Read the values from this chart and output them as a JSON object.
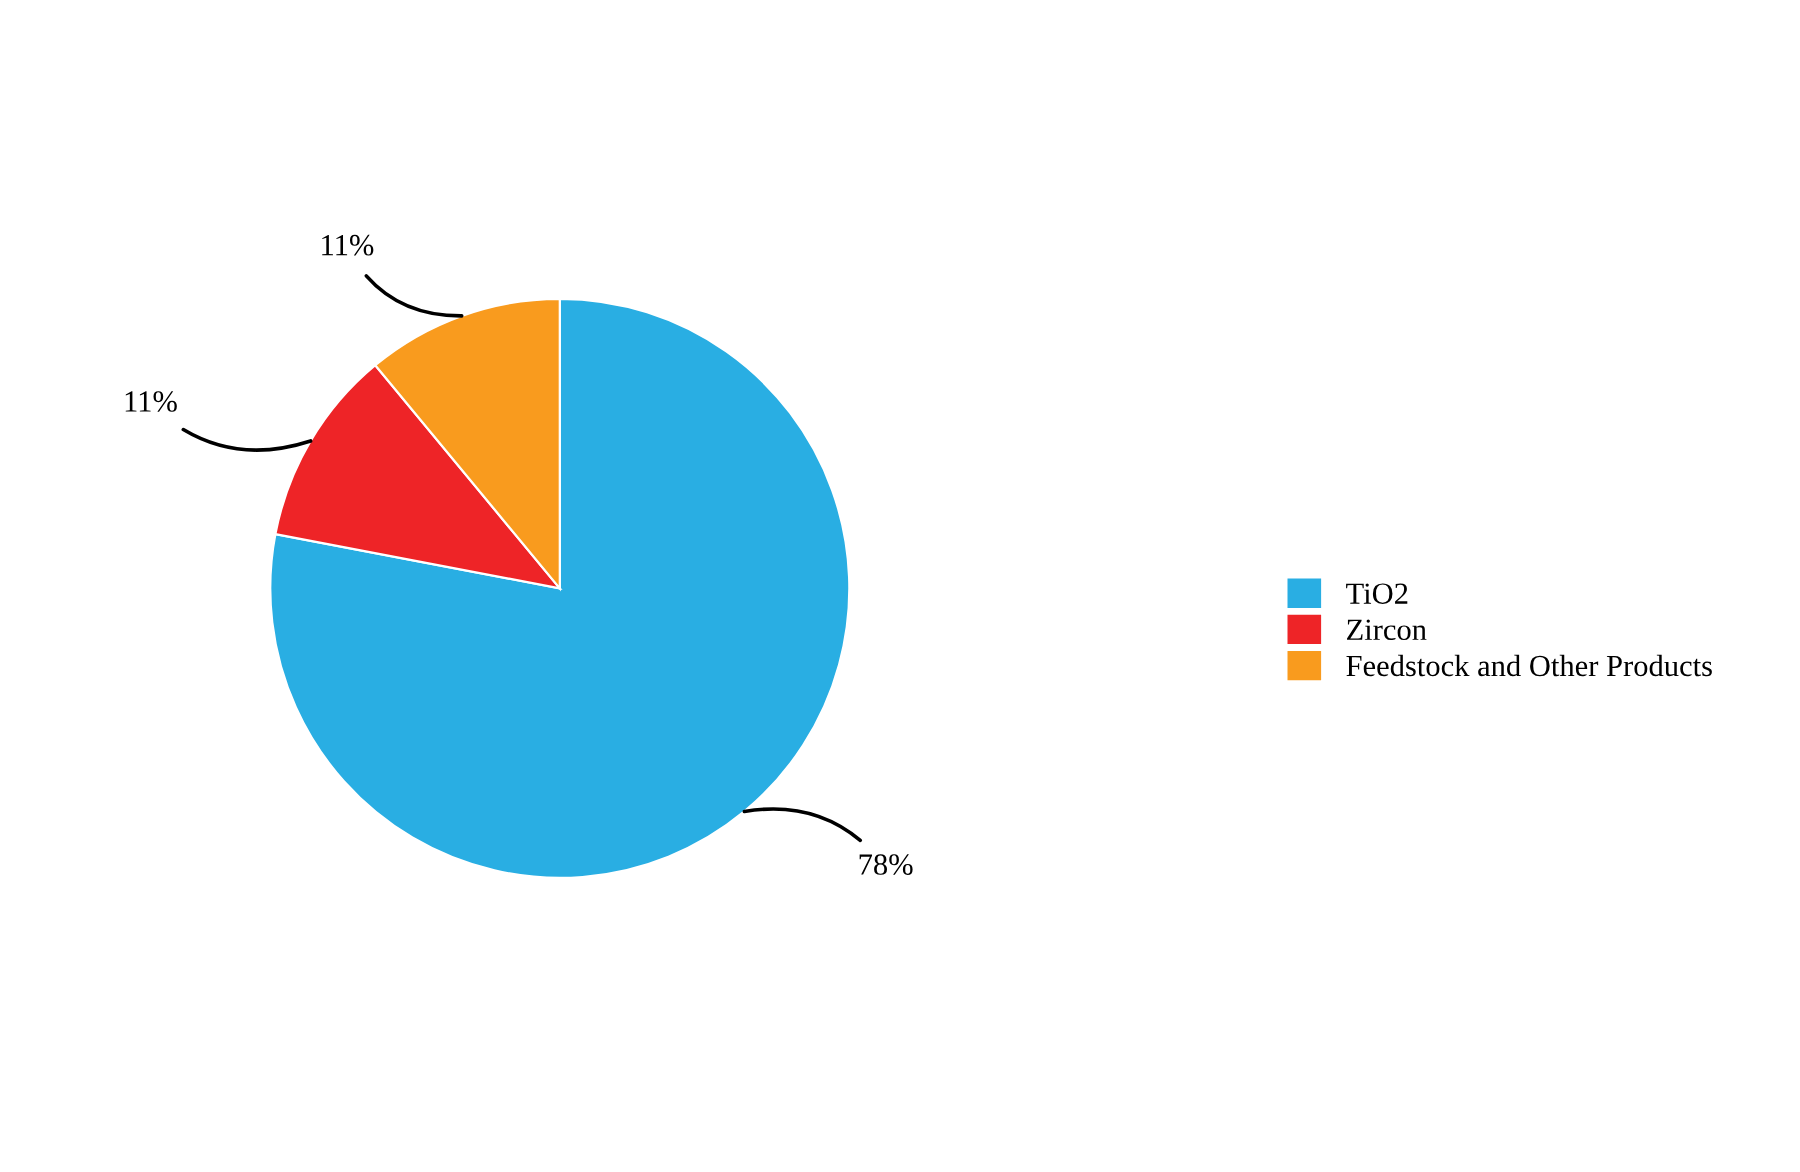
{
  "chart_data": {
    "type": "pie",
    "categories": [
      "TiO2",
      "Zircon",
      "Feedstock and Other Products"
    ],
    "values": [
      78,
      11,
      11
    ],
    "colors": [
      "#29aee3",
      "#ee2427",
      "#f99b1e"
    ],
    "value_labels": [
      "78%",
      "11%",
      "11%"
    ],
    "legend": "right"
  }
}
